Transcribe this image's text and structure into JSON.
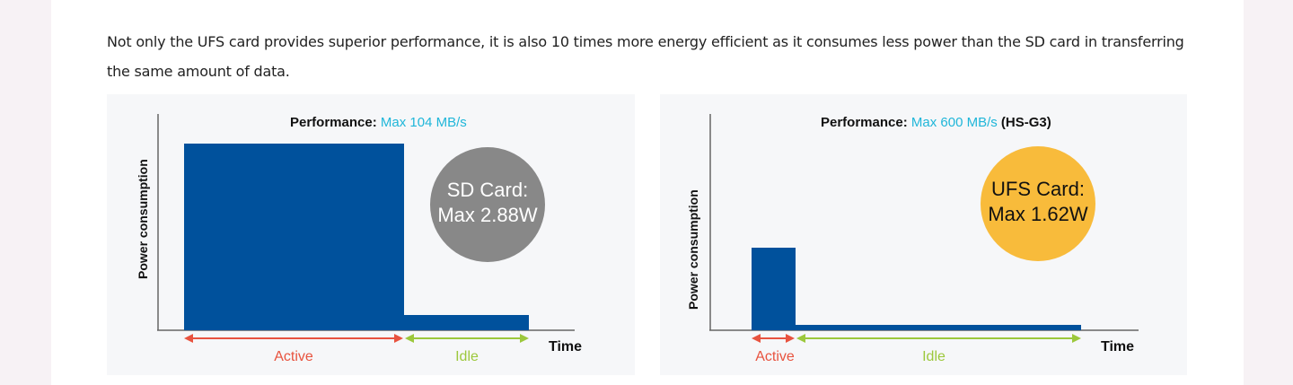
{
  "paragraph": "Not only the UFS card provides superior performance, it is also 10 times more energy efficient as it consumes less power than the SD card in transferring the same amount of data.",
  "colors": {
    "bar": "#00519c",
    "active": "#e8533f",
    "idle": "#9cc83c",
    "accent": "#1fb6d9",
    "sd_circle": "#888888",
    "ufs_circle": "#f8bb3b"
  },
  "figures": [
    {
      "perf_label": "Performance:",
      "perf_value": "Max 104 MB/s",
      "perf_suffix": "",
      "ylabel": "Power consumption",
      "xlabel": "Time",
      "active_label": "Active",
      "idle_label": "Idle",
      "badge_line1": "SD Card:",
      "badge_line2": "Max 2.88W"
    },
    {
      "perf_label": "Performance:",
      "perf_value": "Max 600 MB/s",
      "perf_suffix": "(HS-G3)",
      "ylabel": "Power consumption",
      "xlabel": "Time",
      "active_label": "Active",
      "idle_label": "Idle",
      "badge_line1": "UFS Card:",
      "badge_line2": "Max 1.62W"
    }
  ]
}
